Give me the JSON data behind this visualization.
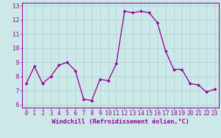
{
  "x": [
    0,
    1,
    2,
    3,
    4,
    5,
    6,
    7,
    8,
    9,
    10,
    11,
    12,
    13,
    14,
    15,
    16,
    17,
    18,
    19,
    20,
    21,
    22,
    23
  ],
  "y": [
    7.5,
    8.7,
    7.5,
    8.0,
    8.8,
    9.0,
    8.4,
    6.4,
    6.3,
    7.8,
    7.7,
    8.9,
    12.6,
    12.5,
    12.6,
    12.5,
    11.8,
    9.8,
    8.5,
    8.5,
    7.5,
    7.4,
    6.9,
    7.1
  ],
  "line_color": "#990099",
  "marker": "D",
  "marker_size": 2.0,
  "linewidth": 1.0,
  "xlabel": "Windchill (Refroidissement éolien,°C)",
  "xlim": [
    -0.5,
    23.5
  ],
  "ylim": [
    5.8,
    13.2
  ],
  "yticks": [
    6,
    7,
    8,
    9,
    10,
    11,
    12,
    13
  ],
  "xticks": [
    0,
    1,
    2,
    3,
    4,
    5,
    6,
    7,
    8,
    9,
    10,
    11,
    12,
    13,
    14,
    15,
    16,
    17,
    18,
    19,
    20,
    21,
    22,
    23
  ],
  "bg_color": "#cce8e8",
  "grid_color": "#b0d8d8",
  "tick_color": "#990099",
  "label_color": "#990099",
  "xlabel_fontsize": 6.5,
  "tick_fontsize": 6.0,
  "spine_color": "#990099"
}
